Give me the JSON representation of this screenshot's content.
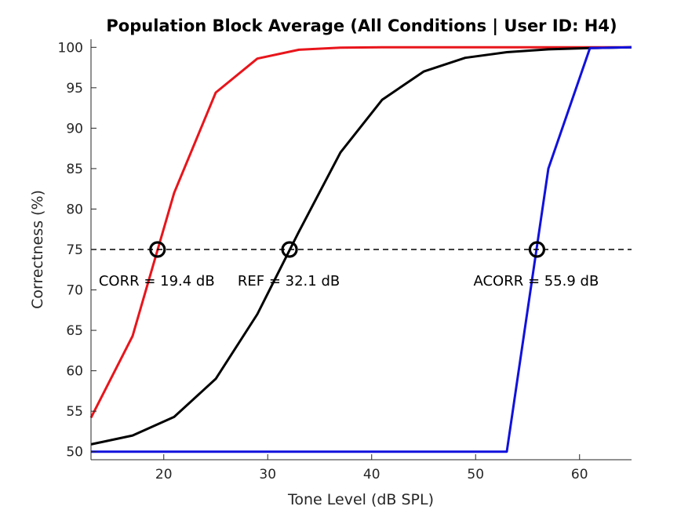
{
  "chart_data": {
    "type": "line",
    "title": "Population Block Average (All Conditions | User ID: H4)",
    "xlabel": "Tone Level (dB SPL)",
    "ylabel": "Correctness (%)",
    "xlim": [
      13,
      65
    ],
    "ylim": [
      49,
      101
    ],
    "xticks": [
      20,
      30,
      40,
      50,
      60
    ],
    "yticks": [
      50,
      55,
      60,
      65,
      70,
      75,
      80,
      85,
      90,
      95,
      100
    ],
    "grid": false,
    "threshold": {
      "y": 75,
      "style": "dashed",
      "color": "#000000"
    },
    "series": [
      {
        "color": "#e8151b",
        "x": [
          13,
          17,
          21,
          25,
          29,
          33,
          37,
          41,
          45,
          49,
          53,
          57,
          61,
          65
        ],
        "y": [
          54.2,
          64.3,
          82.0,
          94.4,
          98.6,
          99.7,
          99.95,
          100,
          100,
          100,
          100,
          100,
          100,
          100
        ]
      },
      {
        "color": "#000000",
        "x": [
          13,
          17,
          21,
          25,
          29,
          33,
          37,
          41,
          45,
          49,
          53,
          57,
          61,
          65
        ],
        "y": [
          50.9,
          52.0,
          54.3,
          59.0,
          67.0,
          77.2,
          87.0,
          93.5,
          97.0,
          98.7,
          99.4,
          99.75,
          99.9,
          100
        ]
      },
      {
        "color": "#1111dd",
        "x": [
          13,
          17,
          21,
          25,
          29,
          33,
          37,
          41,
          45,
          49,
          53,
          57,
          61,
          65
        ],
        "y": [
          50,
          50,
          50,
          50,
          50,
          50,
          50,
          50,
          50,
          50,
          50,
          85.0,
          99.9,
          100
        ]
      }
    ],
    "markers": [
      {
        "x": 19.4,
        "y": 75,
        "label": "CORR = 19.4 dB"
      },
      {
        "x": 32.1,
        "y": 75,
        "label": "REF = 32.1 dB"
      },
      {
        "x": 55.9,
        "y": 75,
        "label": "ACORR = 55.9 dB"
      }
    ]
  }
}
